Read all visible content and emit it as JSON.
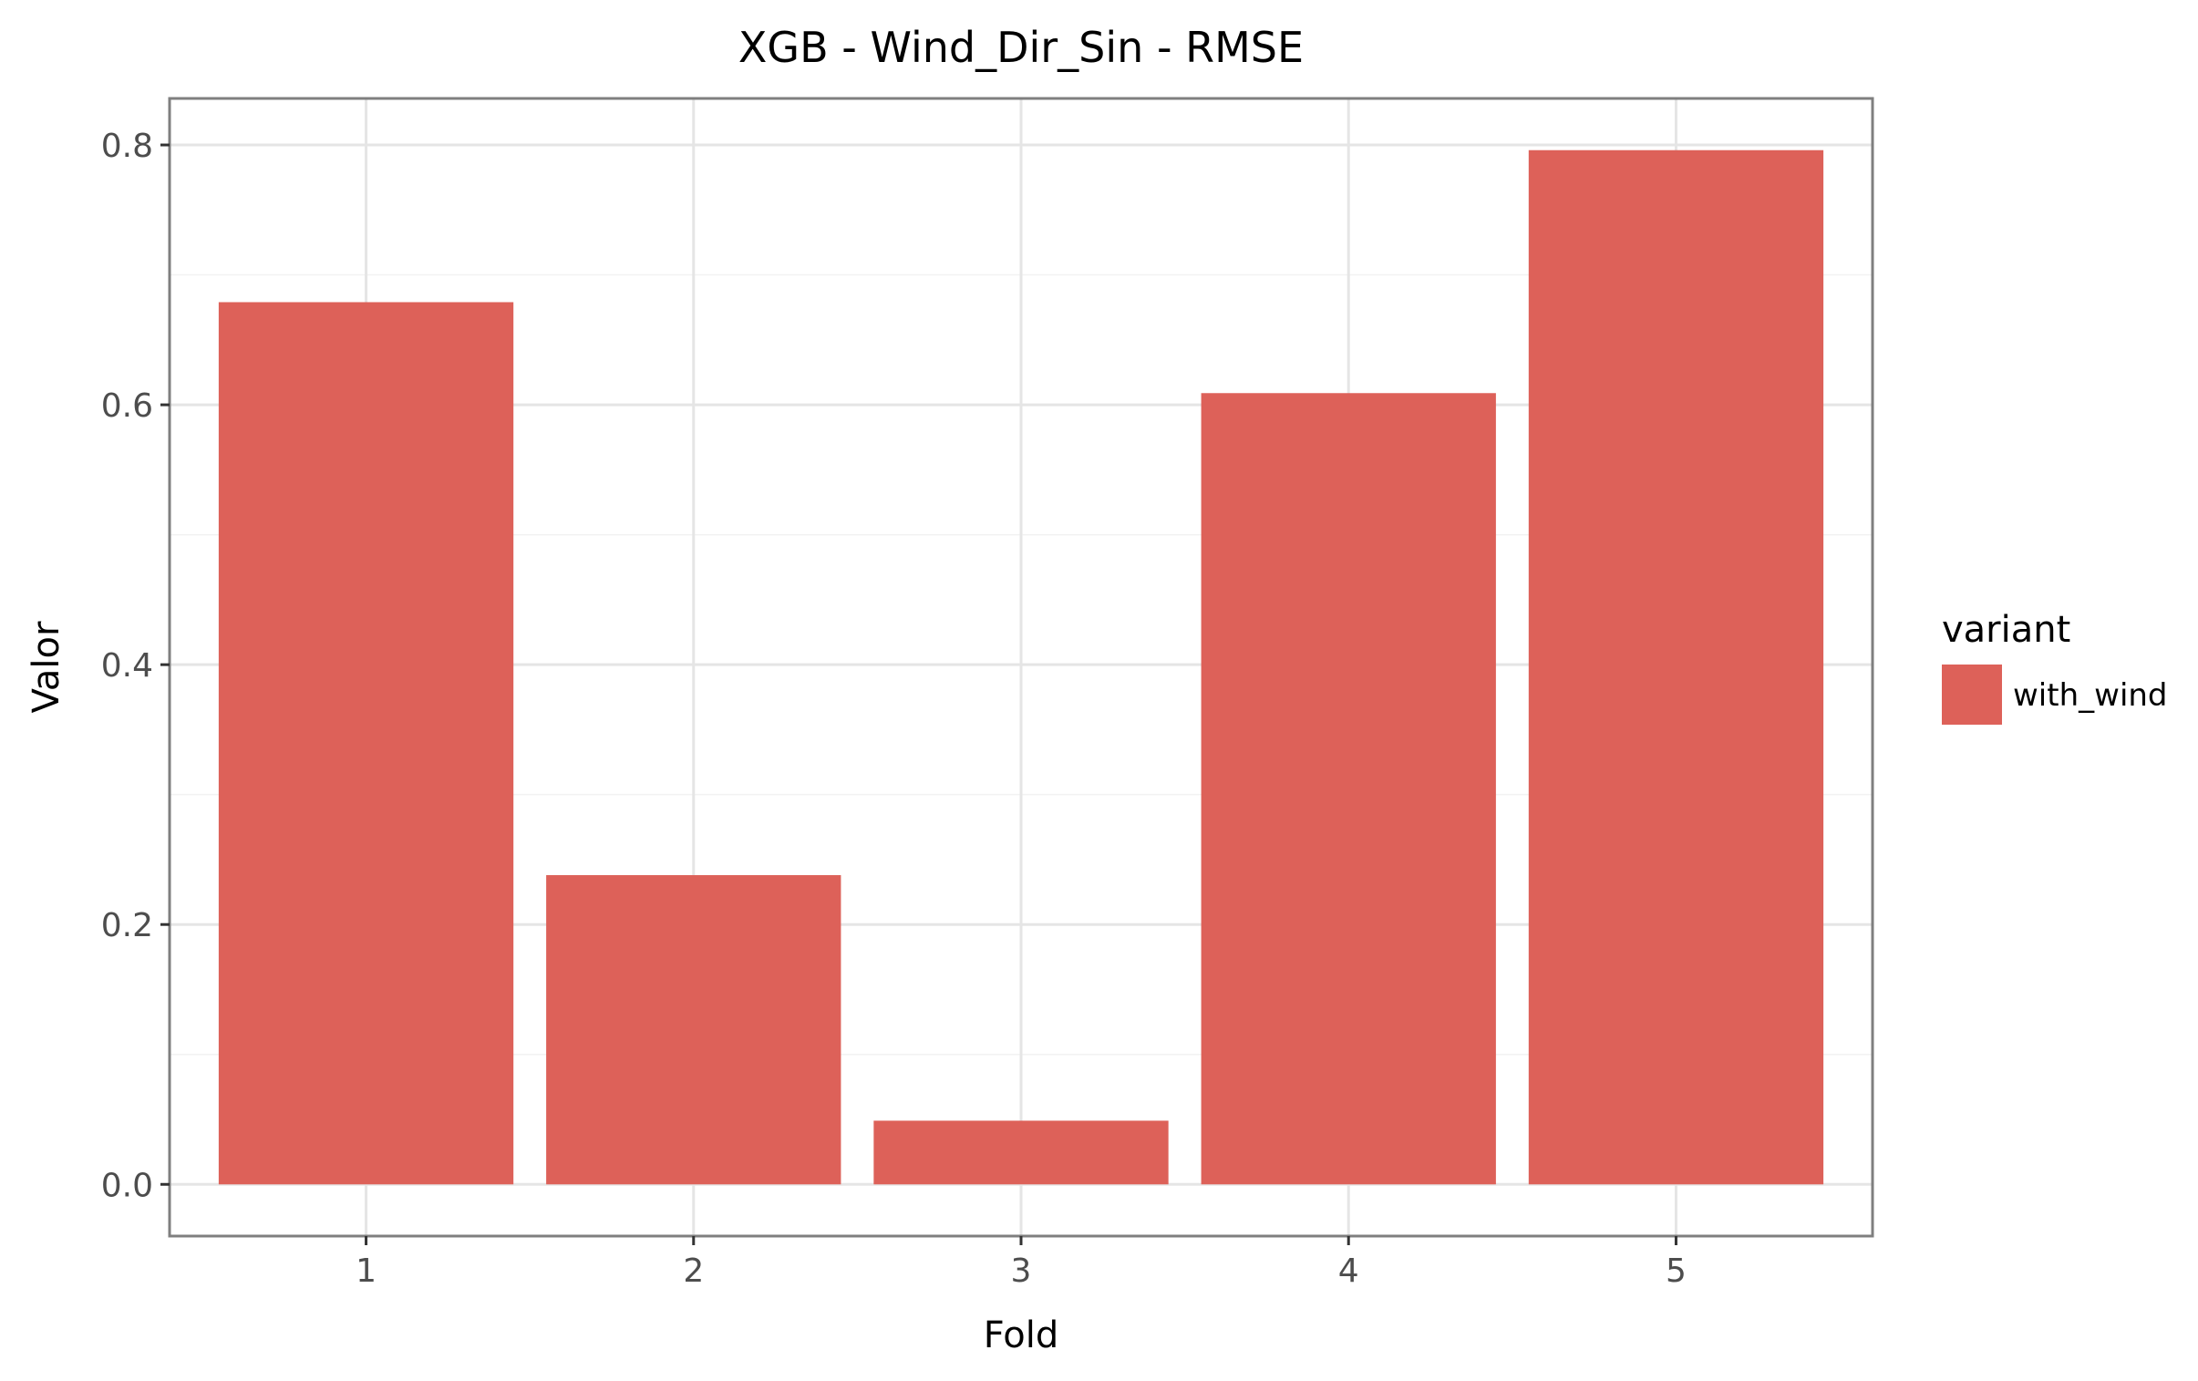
{
  "chart_data": {
    "type": "bar",
    "title": "XGB - Wind_Dir_Sin - RMSE",
    "xlabel": "Fold",
    "ylabel": "Valor",
    "categories": [
      "1",
      "2",
      "3",
      "4",
      "5"
    ],
    "series": [
      {
        "name": "with_wind",
        "values": [
          0.679,
          0.238,
          0.049,
          0.609,
          0.796
        ],
        "color": "#DD6159"
      }
    ],
    "ylim": [
      -0.0398,
      0.8358
    ],
    "yticks": [
      {
        "value": 0.0,
        "label": "0.0"
      },
      {
        "value": 0.2,
        "label": "0.2"
      },
      {
        "value": 0.4,
        "label": "0.4"
      },
      {
        "value": 0.6,
        "label": "0.6"
      },
      {
        "value": 0.8,
        "label": "0.8"
      }
    ],
    "grid": true,
    "legend": {
      "title": "variant",
      "position": "right",
      "items": [
        {
          "label": "with_wind",
          "color": "#DD6159"
        }
      ]
    }
  }
}
